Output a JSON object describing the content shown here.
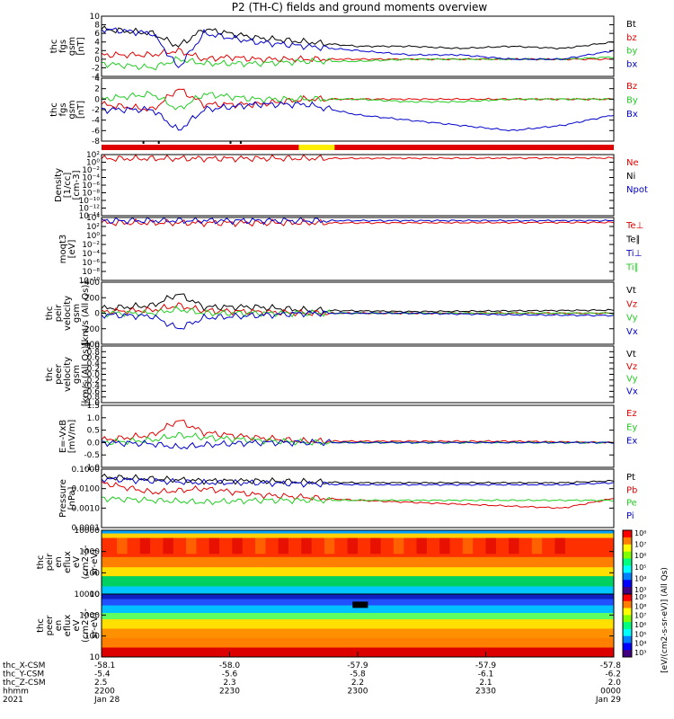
{
  "title": "P2 (TH-C) fields and ground moments overview",
  "colors": {
    "black": "#000000",
    "red": "#e00000",
    "green": "#22cc22",
    "blue": "#0000cc",
    "yellow": "#ffee00"
  },
  "chart_data": [
    {
      "type": "line",
      "ylabel": [
        "thc",
        "fgs",
        "gsm",
        "[nT]"
      ],
      "ylim": [
        -4,
        10
      ],
      "yticks": [
        "10",
        "8",
        "6",
        "4",
        "2",
        "0",
        "-2",
        "-4"
      ],
      "legend": [
        "Bt",
        "bz",
        "by",
        "bx"
      ],
      "legend_colors": [
        "black",
        "red",
        "green",
        "blue"
      ],
      "x": [
        0,
        0.1,
        0.15,
        0.2,
        0.25,
        0.3,
        0.4,
        0.5,
        0.6,
        0.7,
        0.8,
        0.9,
        1.0
      ],
      "series": [
        {
          "name": "Bt",
          "values": [
            7,
            6,
            3,
            7,
            6,
            5,
            4,
            3,
            3,
            2.5,
            3,
            2.5,
            4
          ]
        },
        {
          "name": "bz",
          "values": [
            1,
            1,
            2,
            0,
            0.5,
            0,
            0,
            0,
            0,
            0,
            0,
            0,
            0
          ]
        },
        {
          "name": "by",
          "values": [
            -1,
            -2,
            0,
            -1,
            -1,
            -1,
            -0.5,
            -0.5,
            0,
            0,
            0,
            0,
            0.5
          ]
        },
        {
          "name": "bx",
          "values": [
            7,
            6,
            -2,
            6,
            5,
            4,
            3,
            2,
            1,
            1,
            0,
            0,
            2
          ]
        }
      ]
    },
    {
      "type": "line",
      "ylabel": [
        "thc",
        "fgs",
        "gsm",
        "[nT]"
      ],
      "ylim": [
        -8,
        4
      ],
      "yticks": [
        "4",
        "2",
        "0",
        "-2",
        "-4",
        "-6",
        "-8"
      ],
      "legend": [
        "Bz",
        "By",
        "Bx"
      ],
      "legend_colors": [
        "red",
        "green",
        "blue"
      ],
      "x": [
        0,
        0.1,
        0.15,
        0.2,
        0.3,
        0.4,
        0.5,
        0.6,
        0.7,
        0.8,
        0.9,
        1.0
      ],
      "series": [
        {
          "name": "Bz",
          "values": [
            -1,
            -2,
            2,
            -1,
            -1,
            0,
            0,
            0,
            0,
            0,
            0,
            0
          ]
        },
        {
          "name": "By",
          "values": [
            0,
            1,
            -2,
            1,
            0,
            0,
            0,
            -0.5,
            -0.5,
            0,
            0,
            0
          ]
        },
        {
          "name": "Bx",
          "values": [
            -2,
            -2,
            -6,
            -2,
            -1,
            -1,
            -3,
            -4,
            -5,
            -6,
            -5,
            -3
          ]
        }
      ]
    },
    {
      "type": "line",
      "ylabel": [
        "Density",
        "[1/cc]",
        "[cm-3]"
      ],
      "ylim": [
        -16,
        2
      ],
      "log": true,
      "yticks": [
        "10²",
        "10⁰",
        "10⁻²",
        "10⁻⁴",
        "10⁻⁶",
        "10⁻⁸",
        "10⁻¹⁰",
        "10⁻¹²",
        "10⁻¹⁴"
      ],
      "legend": [
        "Ne",
        "Ni",
        "Npot"
      ],
      "legend_colors": [
        "red",
        "black",
        "blue"
      ],
      "x": [
        0,
        0.5,
        1.0
      ],
      "series": [
        {
          "name": "Ne",
          "values": [
            0.8,
            0.9,
            1.0
          ]
        }
      ]
    },
    {
      "type": "line",
      "ylabel": [
        "moqt3",
        "[eV]"
      ],
      "ylim": [
        -10,
        4
      ],
      "log": true,
      "yticks": [
        "10⁴",
        "10²",
        "10⁰",
        "10⁻²",
        "10⁻⁴",
        "10⁻⁶",
        "10⁻⁸",
        "10⁻¹⁰"
      ],
      "legend": [
        "Te⊥",
        "Te∥",
        "Ti⊥",
        "Ti∥"
      ],
      "legend_colors": [
        "red",
        "black",
        "blue",
        "green"
      ],
      "x": [
        0,
        0.5,
        1.0
      ],
      "series": [
        {
          "name": "Te⊥",
          "values": [
            2.8,
            2.8,
            2.9
          ]
        },
        {
          "name": "Ti⊥",
          "values": [
            3.3,
            3.3,
            3.3
          ]
        }
      ]
    },
    {
      "type": "line",
      "ylabel": [
        "thc",
        "peir",
        "velocity",
        "gsm",
        "[km/s (All Qs)]"
      ],
      "ylim": [
        -400,
        400
      ],
      "yticks": [
        "400",
        "200",
        "0",
        "-200",
        "-400"
      ],
      "legend": [
        "Vt",
        "Vz",
        "Vy",
        "Vx"
      ],
      "legend_colors": [
        "black",
        "red",
        "green",
        "blue"
      ],
      "x": [
        0,
        0.1,
        0.15,
        0.2,
        0.3,
        0.4,
        0.6,
        0.8,
        1.0
      ],
      "series": [
        {
          "name": "Vt",
          "values": [
            60,
            100,
            250,
            80,
            80,
            40,
            20,
            30,
            40
          ]
        },
        {
          "name": "Vz",
          "values": [
            20,
            40,
            100,
            30,
            20,
            0,
            0,
            0,
            0
          ]
        },
        {
          "name": "Vy",
          "values": [
            0,
            0,
            50,
            0,
            0,
            0,
            0,
            0,
            0
          ]
        },
        {
          "name": "Vx",
          "values": [
            -20,
            -40,
            -200,
            -60,
            -30,
            0,
            0,
            -20,
            -30
          ]
        }
      ]
    },
    {
      "type": "line",
      "ylabel": [
        "thc",
        "peer",
        "velocity",
        "gsm",
        "[km/s (All Qs)]"
      ],
      "ylim": [
        -1.0,
        1.0
      ],
      "yticks": [
        "1.0",
        "0.8",
        "0.6",
        "0.4",
        "0.2",
        "0.0",
        "-0.2",
        "-0.4",
        "-0.6",
        "-0.8",
        "-1.0"
      ],
      "legend": [
        "Vt",
        "Vz",
        "Vy",
        "Vx"
      ],
      "legend_colors": [
        "black",
        "red",
        "green",
        "blue"
      ],
      "x": [],
      "series": []
    },
    {
      "type": "line",
      "ylabel": [
        "E=-VxB",
        "[mV/m]"
      ],
      "ylim": [
        -1.0,
        1.5
      ],
      "yticks": [
        "1.5",
        "1.0",
        "0.5",
        "0.0",
        "-0.5",
        "-1.0"
      ],
      "legend": [
        "Ez",
        "Ey",
        "Ex"
      ],
      "legend_colors": [
        "red",
        "green",
        "blue"
      ],
      "x": [
        0,
        0.1,
        0.15,
        0.2,
        0.3,
        0.4,
        0.6,
        0.8,
        1.0
      ],
      "series": [
        {
          "name": "Ez",
          "values": [
            0.1,
            0.3,
            0.9,
            0.4,
            0.2,
            0.05,
            0.05,
            0.05,
            0.0
          ]
        },
        {
          "name": "Ey",
          "values": [
            0,
            0.1,
            0.3,
            0.2,
            0.1,
            0,
            0,
            0,
            0
          ]
        },
        {
          "name": "Ex",
          "values": [
            0,
            -0.05,
            -0.2,
            -0.1,
            0,
            0,
            0,
            0,
            0
          ]
        }
      ]
    },
    {
      "type": "line",
      "ylabel": [
        "Pressure",
        "[nPa]"
      ],
      "ylim": [
        -4,
        -1
      ],
      "log": true,
      "yticks": [
        "0.1000",
        "0.0100",
        "0.0010",
        "0.0001"
      ],
      "legend": [
        "Pt",
        "Pb",
        "Pe",
        "Pi"
      ],
      "legend_colors": [
        "black",
        "red",
        "green",
        "blue"
      ],
      "x": [
        0,
        0.1,
        0.2,
        0.3,
        0.5,
        0.7,
        0.9,
        1.0
      ],
      "series": [
        {
          "name": "Pt",
          "values": [
            -1.4,
            -1.5,
            -1.6,
            -1.6,
            -1.7,
            -1.7,
            -1.7,
            -1.6
          ]
        },
        {
          "name": "Pb",
          "values": [
            -1.7,
            -2.2,
            -2.0,
            -2.3,
            -2.6,
            -2.8,
            -3.0,
            -2.5
          ]
        },
        {
          "name": "Pe",
          "values": [
            -2.5,
            -2.6,
            -2.7,
            -2.6,
            -2.6,
            -2.6,
            -2.6,
            -2.6
          ]
        },
        {
          "name": "Pi",
          "values": [
            -1.5,
            -1.6,
            -1.7,
            -1.7,
            -1.8,
            -1.8,
            -1.8,
            -1.7
          ]
        }
      ]
    },
    {
      "type": "heatmap",
      "ylabel": [
        "thc",
        "peir",
        "en",
        "eflux",
        "eV",
        "(cm2-s-",
        "sr-eV)"
      ],
      "yticks": [
        "10000",
        "1000",
        "100",
        "10"
      ],
      "colorbar": {
        "ticks": [
          "10⁸",
          "10⁷",
          "10⁶",
          "10⁵",
          "10⁴",
          "10³"
        ]
      }
    },
    {
      "type": "heatmap",
      "ylabel": [
        "thc",
        "peer",
        "en",
        "eflux",
        "eV",
        "(cm2-s-",
        "sr-eV)"
      ],
      "yticks": [
        "10000",
        "1000",
        "100",
        "10"
      ],
      "colorbar": {
        "ticks": [
          "10⁹",
          "10⁸",
          "10⁷",
          "10⁶",
          "10⁵",
          "10⁴",
          "10³"
        ],
        "label": "[eV/(cm2-s-sr-eV)] (All Qs)"
      }
    }
  ],
  "axis": {
    "rows": [
      {
        "label": "thc_X-CSM",
        "vals": [
          "-58.1",
          "-58.0",
          "-57.9",
          "-57.9",
          "-57.8"
        ]
      },
      {
        "label": "thc_Y-CSM",
        "vals": [
          "-5.4",
          "-5.6",
          "-5.8",
          "-6.1",
          "-6.2"
        ]
      },
      {
        "label": "thc_Z-CSM",
        "vals": [
          "2.5",
          "2.3",
          "2.2",
          "2.1",
          "2.0"
        ]
      },
      {
        "label": "hhmm",
        "vals": [
          "2200",
          "2230",
          "2300",
          "2330",
          "0000"
        ]
      },
      {
        "label": "2021",
        "vals": [
          "Jan 28",
          "",
          "",
          "",
          "Jan 29"
        ]
      }
    ]
  }
}
